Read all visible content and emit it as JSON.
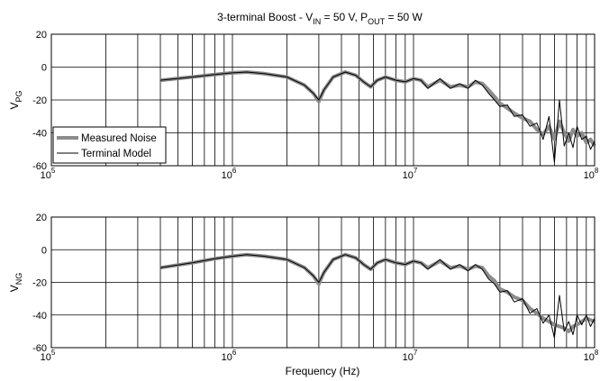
{
  "figure": {
    "title_main": "3-terminal Boost - V",
    "title_sub_in": "IN",
    "title_mid": " = 50 V, P",
    "title_sub_out": "OUT",
    "title_end": " = 50 W",
    "xlabel": "Frequency (Hz)"
  },
  "legend": {
    "measured": "Measured Noise",
    "model": "Terminal Model"
  },
  "chart_data": [
    {
      "type": "line",
      "ylabel_main": "V",
      "ylabel_sub": "PG",
      "xscale": "log",
      "xlim": [
        100000,
        100000000
      ],
      "ylim": [
        -60,
        20
      ],
      "yticks": [
        "20",
        "0",
        "-20",
        "-40",
        "-60"
      ],
      "xticks": [
        {
          "base": "10",
          "exp": "5"
        },
        {
          "base": "10",
          "exp": "6"
        },
        {
          "base": "10",
          "exp": "7"
        },
        {
          "base": "10",
          "exp": "8"
        }
      ],
      "grid": true,
      "legend_position": "bottom-left",
      "x": [
        400000,
        600000,
        800000,
        1000000,
        1200000,
        1500000,
        2000000,
        2500000,
        2800000,
        3000000,
        3200000,
        3600000,
        4200000,
        4800000,
        5300000,
        5800000,
        6300000,
        7000000,
        8000000,
        9000000,
        10000000,
        11000000,
        12000000,
        14000000,
        16000000,
        18000000,
        20000000,
        22000000,
        24000000,
        26000000,
        28000000,
        30000000,
        33000000,
        36000000,
        40000000,
        44000000,
        48000000,
        52000000,
        56000000,
        60000000,
        64000000,
        68000000,
        72000000,
        76000000,
        80000000,
        85000000,
        90000000,
        95000000,
        100000000
      ],
      "series": [
        {
          "name": "Measured Noise",
          "color": "#8c8c8c",
          "values": [
            -8,
            -6,
            -4.5,
            -3.5,
            -3,
            -4,
            -6,
            -11,
            -16,
            -21,
            -14,
            -6,
            -3,
            -5,
            -9,
            -12,
            -8,
            -6,
            -8,
            -9,
            -7,
            -8,
            -12,
            -8,
            -12,
            -11,
            -12,
            -9,
            -10,
            -14,
            -18,
            -22,
            -25,
            -28,
            -31,
            -33,
            -38,
            -41,
            -36,
            -44,
            -33,
            -40,
            -45,
            -38,
            -42,
            -40,
            -46,
            -44,
            -48
          ]
        },
        {
          "name": "Terminal Model",
          "color": "#000000",
          "values": [
            -8,
            -6,
            -4.5,
            -3.5,
            -3,
            -4,
            -6,
            -11,
            -16,
            -20,
            -14,
            -6,
            -3,
            -5,
            -9,
            -12,
            -8,
            -6,
            -8,
            -9,
            -7,
            -8,
            -13,
            -7,
            -13,
            -10,
            -13,
            -8,
            -11,
            -16,
            -20,
            -24,
            -23,
            -30,
            -29,
            -36,
            -34,
            -44,
            -30,
            -58,
            -20,
            -48,
            -40,
            -49,
            -36,
            -44,
            -42,
            -50,
            -45
          ]
        }
      ]
    },
    {
      "type": "line",
      "ylabel_main": "V",
      "ylabel_sub": "NG",
      "xscale": "log",
      "xlim": [
        100000,
        100000000
      ],
      "ylim": [
        -60,
        20
      ],
      "yticks": [
        "20",
        "0",
        "-20",
        "-40",
        "-60"
      ],
      "xticks": [
        {
          "base": "10",
          "exp": "5"
        },
        {
          "base": "10",
          "exp": "6"
        },
        {
          "base": "10",
          "exp": "7"
        },
        {
          "base": "10",
          "exp": "8"
        }
      ],
      "grid": true,
      "x": [
        400000,
        600000,
        800000,
        1000000,
        1200000,
        1500000,
        2000000,
        2500000,
        2800000,
        3000000,
        3200000,
        3600000,
        4200000,
        4800000,
        5300000,
        5800000,
        6300000,
        7000000,
        8000000,
        9000000,
        10000000,
        11000000,
        12000000,
        14000000,
        16000000,
        18000000,
        20000000,
        22000000,
        24000000,
        26000000,
        28000000,
        30000000,
        33000000,
        36000000,
        40000000,
        44000000,
        48000000,
        52000000,
        56000000,
        60000000,
        64000000,
        68000000,
        72000000,
        76000000,
        80000000,
        85000000,
        90000000,
        95000000,
        100000000
      ],
      "series": [
        {
          "name": "Measured Noise",
          "color": "#8c8c8c",
          "values": [
            -11,
            -8,
            -5.5,
            -4,
            -3,
            -4,
            -6,
            -11,
            -16,
            -21,
            -14,
            -6,
            -3,
            -5,
            -9,
            -12,
            -8,
            -6,
            -8,
            -9,
            -7,
            -8,
            -11,
            -7,
            -11,
            -10,
            -12,
            -10,
            -11,
            -16,
            -19,
            -24,
            -26,
            -29,
            -31,
            -36,
            -39,
            -42,
            -44,
            -46,
            -47,
            -48,
            -50,
            -47,
            -46,
            -44,
            -42,
            -43,
            -44
          ]
        },
        {
          "name": "Terminal Model",
          "color": "#000000",
          "values": [
            -11,
            -8,
            -5.5,
            -4,
            -3,
            -4,
            -6,
            -11,
            -16,
            -20,
            -14,
            -6,
            -3,
            -5,
            -9,
            -12,
            -8,
            -6,
            -8,
            -9,
            -7,
            -8,
            -12,
            -6,
            -12,
            -9,
            -13,
            -9,
            -12,
            -18,
            -21,
            -26,
            -25,
            -32,
            -30,
            -39,
            -36,
            -45,
            -40,
            -54,
            -28,
            -50,
            -44,
            -52,
            -40,
            -46,
            -40,
            -47,
            -42
          ]
        }
      ]
    }
  ]
}
